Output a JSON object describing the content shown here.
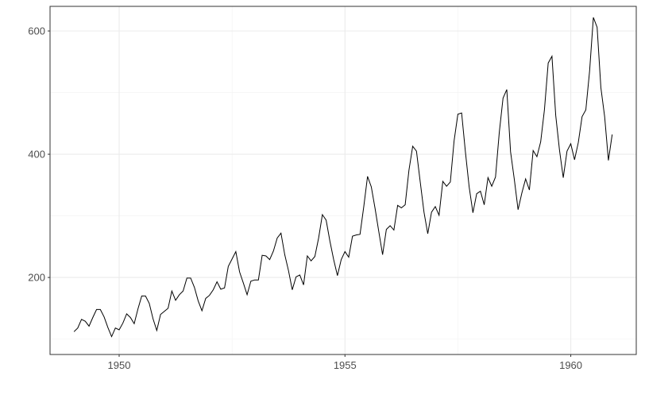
{
  "chart_data": {
    "type": "line",
    "title": "",
    "xlabel": "",
    "ylabel": "",
    "xlim": [
      1948.47,
      1961.45
    ],
    "ylim": [
      75,
      640
    ],
    "x_ticks": [
      1950,
      1955,
      1960
    ],
    "x_tick_labels": [
      "1950",
      "1955",
      "1960"
    ],
    "y_ticks": [
      200,
      400,
      600
    ],
    "y_tick_labels": [
      "200",
      "400",
      "600"
    ],
    "grid": true,
    "legend": "none",
    "line_color": "#000000",
    "x_start": 1949,
    "x_step_months": 1,
    "series": [
      {
        "values": [
          112,
          118,
          132,
          129,
          121,
          135,
          148,
          148,
          136,
          119,
          104,
          118,
          115,
          126,
          141,
          135,
          125,
          149,
          170,
          170,
          158,
          133,
          114,
          140,
          145,
          150,
          178,
          163,
          172,
          178,
          199,
          199,
          184,
          162,
          146,
          166,
          171,
          180,
          193,
          181,
          183,
          218,
          230,
          242,
          209,
          191,
          172,
          194,
          196,
          196,
          236,
          235,
          229,
          243,
          264,
          272,
          237,
          211,
          180,
          201,
          204,
          188,
          235,
          227,
          234,
          264,
          302,
          293,
          259,
          229,
          203,
          229,
          242,
          233,
          267,
          269,
          270,
          315,
          364,
          347,
          312,
          274,
          237,
          278,
          284,
          277,
          317,
          313,
          318,
          374,
          413,
          405,
          355,
          306,
          271,
          306,
          315,
          301,
          356,
          348,
          355,
          422,
          465,
          467,
          404,
          347,
          305,
          336,
          340,
          318,
          362,
          348,
          363,
          435,
          491,
          505,
          404,
          359,
          310,
          337,
          360,
          342,
          406,
          396,
          420,
          472,
          548,
          559,
          463,
          407,
          362,
          405,
          417,
          391,
          419,
          461,
          472,
          535,
          622,
          606,
          508,
          461,
          390,
          432
        ]
      }
    ]
  }
}
